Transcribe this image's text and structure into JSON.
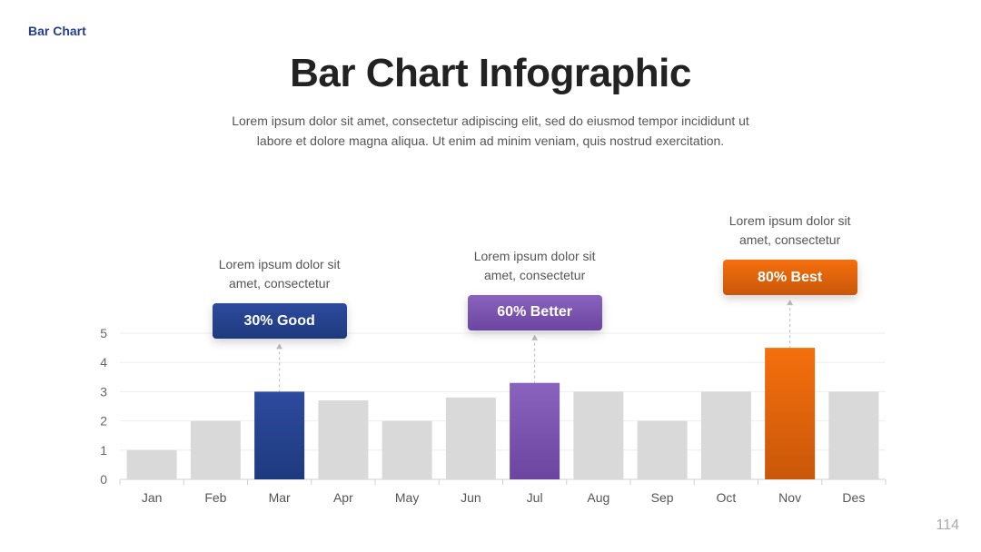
{
  "header": {
    "section_label": "Bar Chart",
    "title": "Bar Chart Infographic",
    "subtitle": "Lorem ipsum dolor sit amet, consectetur adipiscing elit, sed do eiusmod tempor incididunt ut labore et dolore magna aliqua. Ut enim ad minim veniam, quis nostrud exercitation."
  },
  "chart_data": {
    "type": "bar",
    "categories": [
      "Jan",
      "Feb",
      "Mar",
      "Apr",
      "May",
      "Jun",
      "Jul",
      "Aug",
      "Sep",
      "Oct",
      "Nov",
      "Des"
    ],
    "values": [
      1,
      2,
      3,
      2.7,
      2,
      2.8,
      3.3,
      3,
      2,
      3,
      4.5,
      3
    ],
    "ylim": [
      0,
      5
    ],
    "yticks": [
      0,
      1,
      2,
      3,
      4,
      5
    ],
    "grid": true,
    "base_color": "#d9d9d9",
    "highlights": [
      {
        "index": 2,
        "label": "30% Good",
        "note_line1": "Lorem ipsum dolor sit",
        "note_line2": "amet, consectetur",
        "color_top": "#2d4a9e",
        "color_bottom": "#1e3a7e"
      },
      {
        "index": 6,
        "label": "60% Better",
        "note_line1": "Lorem ipsum dolor sit",
        "note_line2": "amet, consectetur",
        "color_top": "#8a63be",
        "color_bottom": "#6b45a0"
      },
      {
        "index": 10,
        "label": "80% Best",
        "note_line1": "Lorem ipsum dolor sit",
        "note_line2": "amet, consectetur",
        "color_top": "#f56f0d",
        "color_bottom": "#c9570a"
      }
    ]
  },
  "footer": {
    "page_number": "114"
  }
}
